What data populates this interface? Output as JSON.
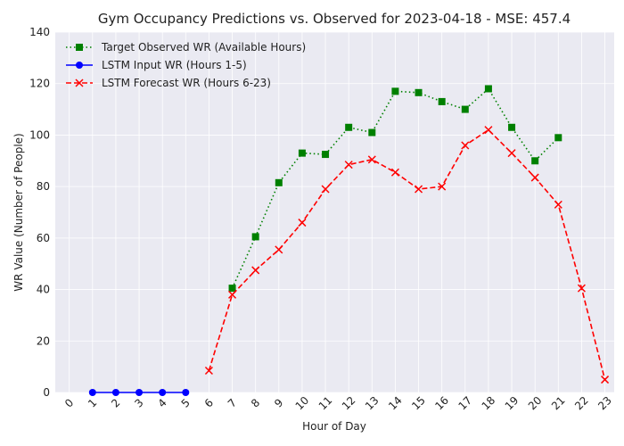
{
  "chart_data": {
    "type": "line",
    "title": "Gym Occupancy Predictions vs. Observed for 2023-04-18 - MSE: 457.4",
    "xlabel": "Hour of Day",
    "ylabel": "WR Value (Number of People)",
    "xlim": [
      -0.6,
      23.4
    ],
    "ylim": [
      0,
      140
    ],
    "x_ticks": [
      0,
      1,
      2,
      3,
      4,
      5,
      6,
      7,
      8,
      9,
      10,
      11,
      12,
      13,
      14,
      15,
      16,
      17,
      18,
      19,
      20,
      21,
      22,
      23
    ],
    "y_ticks": [
      0,
      20,
      40,
      60,
      80,
      100,
      120,
      140
    ],
    "grid": true,
    "legend_position": "top-left",
    "series": [
      {
        "name": "Target Observed WR (Available Hours)",
        "color": "#008000",
        "linestyle": "dotted",
        "marker": "square",
        "x": [
          7,
          8,
          9,
          10,
          11,
          12,
          13,
          14,
          15,
          16,
          17,
          18,
          19,
          20,
          21
        ],
        "y": [
          40.5,
          60.5,
          81.5,
          93,
          92.5,
          103,
          101,
          117,
          116.5,
          113,
          110,
          118,
          103,
          90,
          99
        ]
      },
      {
        "name": "LSTM Input WR (Hours 1-5)",
        "color": "#0000ff",
        "linestyle": "solid",
        "marker": "circle",
        "x": [
          1,
          2,
          3,
          4,
          5
        ],
        "y": [
          0,
          0,
          0,
          0,
          0
        ]
      },
      {
        "name": "LSTM Forecast WR (Hours 6-23)",
        "color": "#ff0000",
        "linestyle": "dashed",
        "marker": "x",
        "x": [
          6,
          7,
          8,
          9,
          10,
          11,
          12,
          13,
          14,
          15,
          16,
          17,
          18,
          19,
          20,
          21,
          22,
          23
        ],
        "y": [
          8.5,
          38,
          47.5,
          55.5,
          66,
          79,
          88.5,
          90.5,
          85.5,
          79,
          80,
          96,
          102,
          93,
          83.5,
          73,
          40.5,
          5
        ]
      }
    ]
  }
}
